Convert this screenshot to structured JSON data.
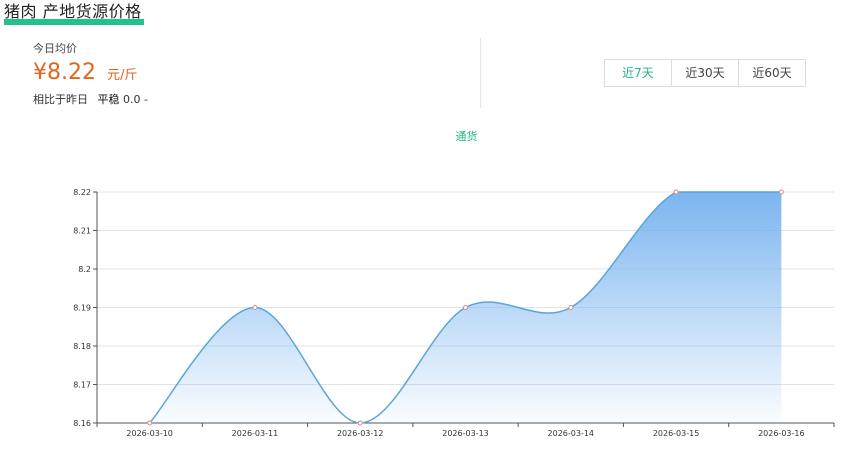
{
  "header": {
    "title": "猪肉 产地货源价格"
  },
  "price": {
    "today_label": "今日均价",
    "value": "¥8.22",
    "unit": "元/斤",
    "compare_label": "相比于昨日",
    "trend_text": "平稳",
    "change_text": "0.0",
    "change_dash": "-"
  },
  "range_tabs": [
    {
      "label": "近7天",
      "active": true
    },
    {
      "label": "近30天",
      "active": false
    },
    {
      "label": "近60天",
      "active": false
    }
  ],
  "colors": {
    "accent": "#21b58a",
    "price": "#e2641d",
    "line": "#5aa4de",
    "area_top": "#74b1ef",
    "point": "#e08a8a"
  },
  "chart_data": {
    "type": "area",
    "title": "",
    "xlabel": "",
    "ylabel": "",
    "categories": [
      "2026-03-10",
      "2026-03-11",
      "2026-03-12",
      "2026-03-13",
      "2026-03-14",
      "2026-03-15",
      "2026-03-16"
    ],
    "series": [
      {
        "name": "通货",
        "values": [
          8.16,
          8.19,
          8.16,
          8.19,
          8.19,
          8.22,
          8.22
        ]
      }
    ],
    "ylim": [
      8.16,
      8.22
    ],
    "yticks": [
      "8.16",
      "8.17",
      "8.18",
      "8.19",
      "8.2",
      "8.21",
      "8.22"
    ],
    "grid": true,
    "legend": "top-center",
    "smooth": true
  }
}
